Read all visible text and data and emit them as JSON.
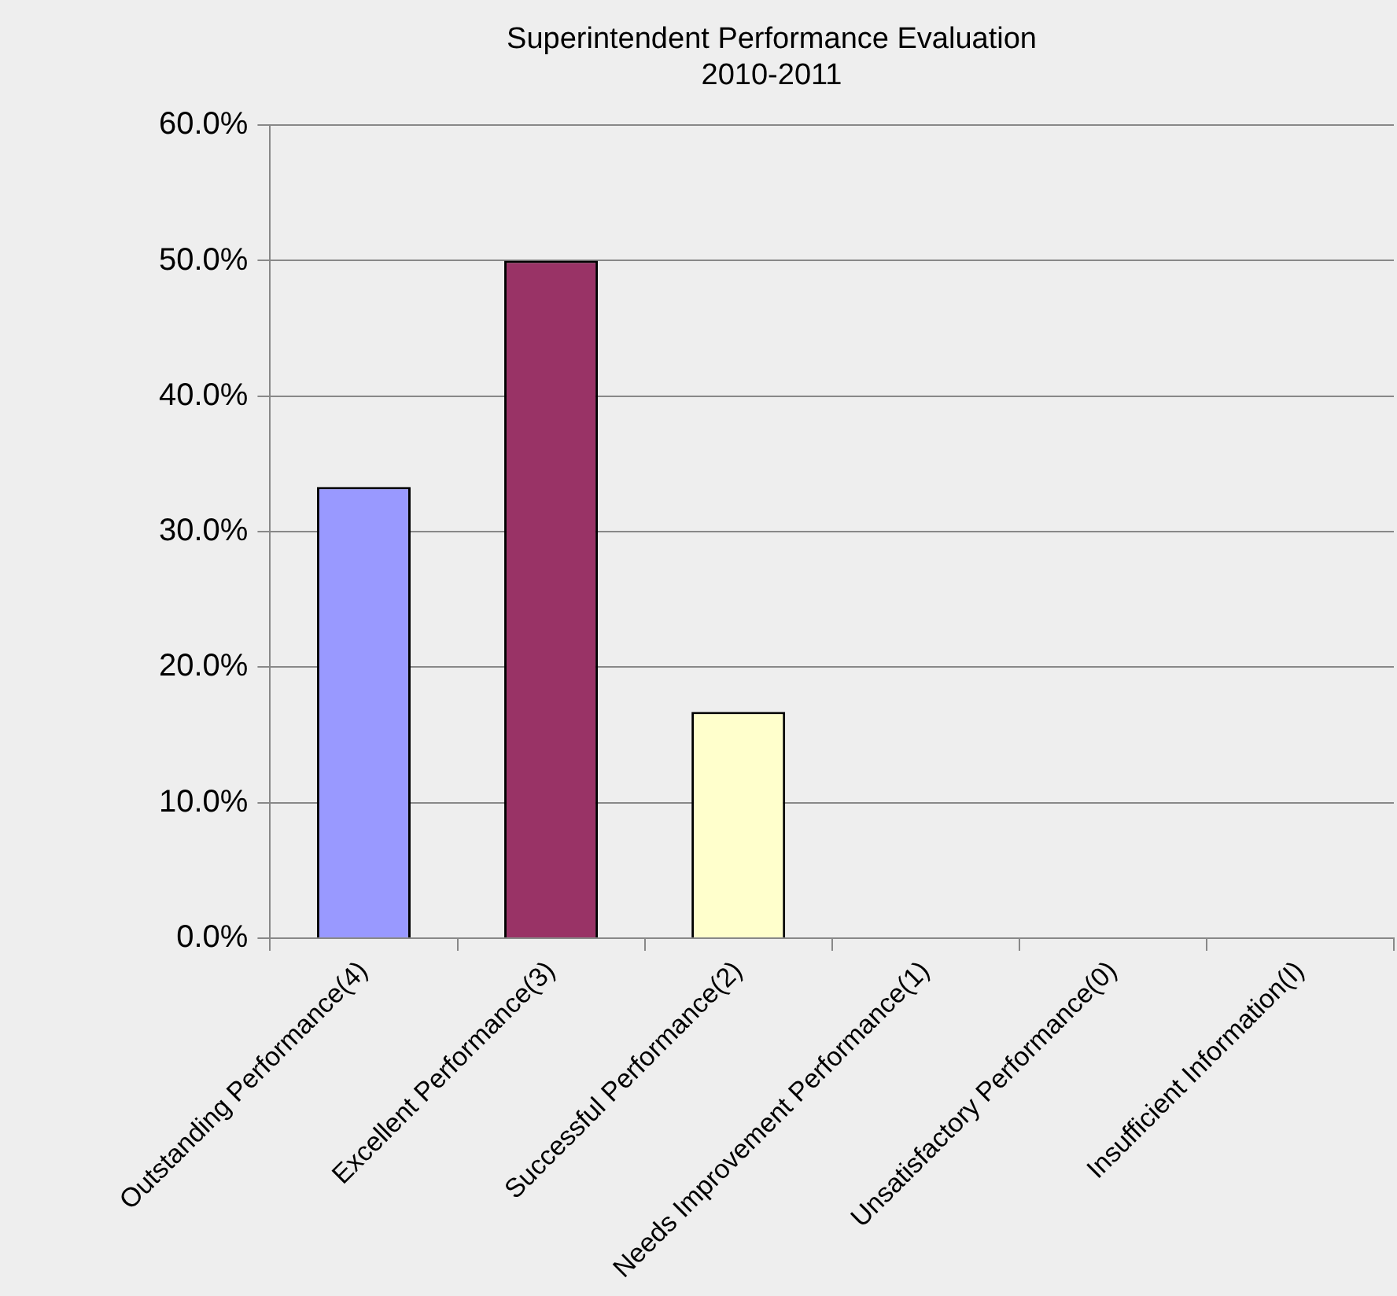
{
  "chart_data": {
    "type": "bar",
    "title": [
      "Superintendent Performance Evaluation",
      "2010-2011"
    ],
    "categories": [
      "Outstanding Performance(4)",
      "Excellent Performance(3)",
      "Successful Performance(2)",
      "Needs Improvement Performance(1)",
      "Unsatisfactory Performance(0)",
      "Insufficient Information(I)"
    ],
    "values": [
      33.3,
      50.0,
      16.7,
      0,
      0,
      0
    ],
    "colors": [
      "#9999ff",
      "#993366",
      "#ffffcc",
      "#9999ff",
      "#993366",
      "#ffffcc"
    ],
    "ylim": [
      0,
      60
    ],
    "yticks": [
      {
        "value": 0,
        "label": "0.0%"
      },
      {
        "value": 10,
        "label": "10.0%"
      },
      {
        "value": 20,
        "label": "20.0%"
      },
      {
        "value": 30,
        "label": "30.0%"
      },
      {
        "value": 40,
        "label": "40.0%"
      },
      {
        "value": 50,
        "label": "50.0%"
      },
      {
        "value": 60,
        "label": "60.0%"
      }
    ],
    "grid": "y",
    "legend": false
  }
}
